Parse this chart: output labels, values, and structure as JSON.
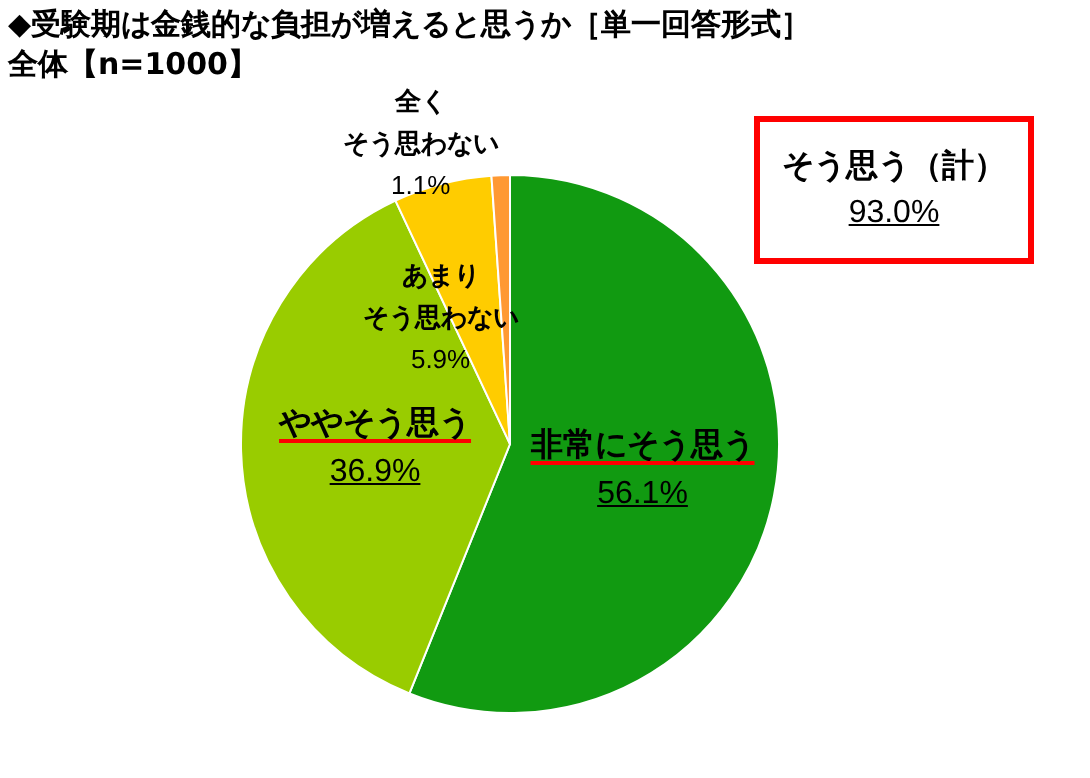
{
  "chart_data": {
    "type": "pie",
    "title": "◆受験期は金銭的な負担が増えると思うか［単一回答形式］",
    "subtitle": "全体【n=1000】",
    "categories": [
      "非常にそう思う",
      "ややそう思う",
      "あまりそう思わない",
      "全くそう思わない"
    ],
    "values": [
      56.1,
      36.9,
      5.9,
      1.1
    ],
    "value_labels": [
      "56.1%",
      "36.9%",
      "5.9%",
      "1.1%"
    ],
    "colors": [
      "#119a11",
      "#99cc00",
      "#ffcc00",
      "#ff9933"
    ],
    "annotations": [
      "そう思う（計）",
      "93.0%"
    ]
  }
}
